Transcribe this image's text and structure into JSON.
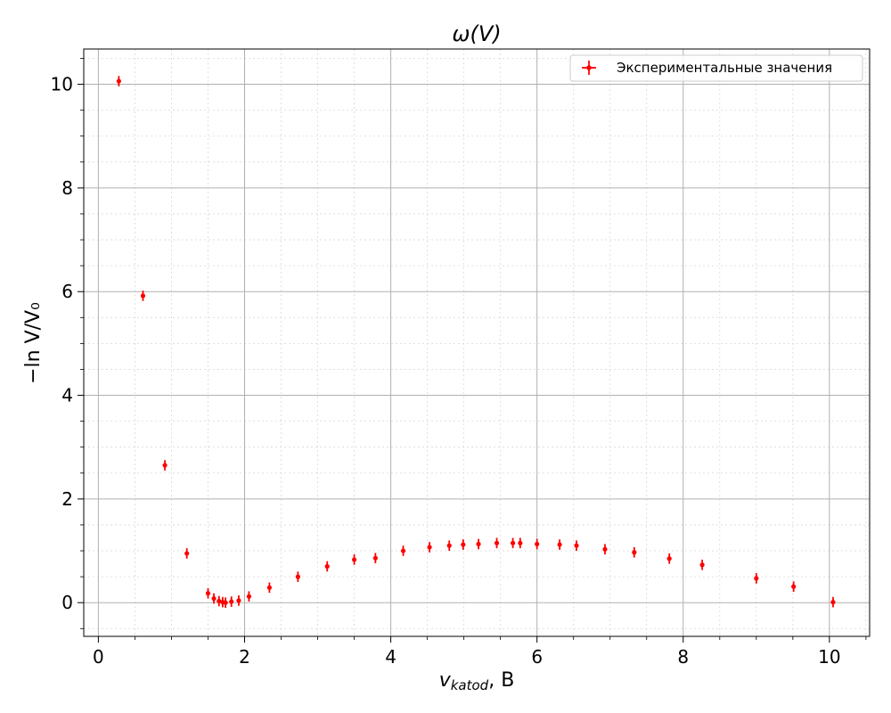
{
  "chart_data": {
    "type": "scatter",
    "title": "ω(V)",
    "xlabel": {
      "main": "v",
      "sub": "katod",
      "rest": ", В"
    },
    "ylabel": "−ln V/V₀",
    "xlim": [
      -0.2,
      10.55
    ],
    "ylim": [
      -0.65,
      10.68
    ],
    "xticks": [
      0,
      2,
      4,
      6,
      8,
      10
    ],
    "yticks": [
      0,
      2,
      4,
      6,
      8,
      10
    ],
    "x_minor_step": 0.5,
    "y_minor_step": 0.5,
    "grid": true,
    "minor_grid": true,
    "legend_position": "top-right",
    "series": [
      {
        "name": "Экспериментальные значения",
        "color": "#ff0000",
        "yerr": 0.1,
        "points": [
          [
            0.28,
            10.06
          ],
          [
            0.61,
            5.92
          ],
          [
            0.91,
            2.65
          ],
          [
            1.21,
            0.95
          ],
          [
            1.5,
            0.18
          ],
          [
            1.58,
            0.08
          ],
          [
            1.65,
            0.03
          ],
          [
            1.7,
            0.01
          ],
          [
            1.74,
            0.0
          ],
          [
            1.82,
            0.02
          ],
          [
            1.92,
            0.04
          ],
          [
            2.06,
            0.12
          ],
          [
            2.34,
            0.29
          ],
          [
            2.73,
            0.5
          ],
          [
            3.13,
            0.7
          ],
          [
            3.5,
            0.83
          ],
          [
            3.79,
            0.86
          ],
          [
            4.17,
            1.0
          ],
          [
            4.53,
            1.07
          ],
          [
            4.8,
            1.1
          ],
          [
            4.99,
            1.12
          ],
          [
            5.2,
            1.13
          ],
          [
            5.45,
            1.15
          ],
          [
            5.67,
            1.15
          ],
          [
            5.77,
            1.15
          ],
          [
            6.0,
            1.13
          ],
          [
            6.31,
            1.12
          ],
          [
            6.54,
            1.1
          ],
          [
            6.93,
            1.03
          ],
          [
            7.33,
            0.97
          ],
          [
            7.81,
            0.85
          ],
          [
            8.26,
            0.73
          ],
          [
            9.0,
            0.47
          ],
          [
            9.51,
            0.31
          ],
          [
            10.05,
            0.01
          ]
        ]
      }
    ]
  }
}
